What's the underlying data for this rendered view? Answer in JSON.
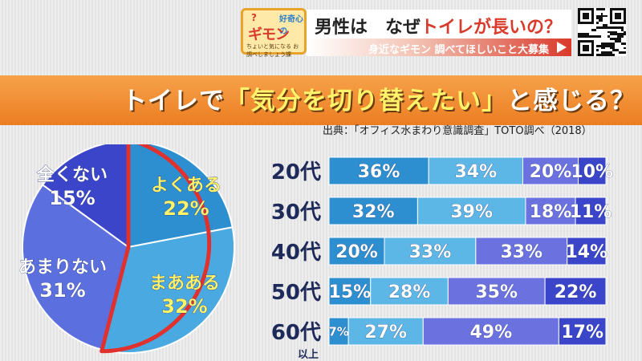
{
  "header": {
    "logo_top": "?",
    "logo_top2": "好奇心の",
    "logo_title": "ギモン",
    "logo_sub": "ちょいと気になる お調べしましょう課",
    "headline_a": "男性は　なぜ",
    "headline_b": "トイレが長いの？",
    "subline": "身近なギモン 調べてほしいこと大募集"
  },
  "banner": {
    "title_a": "トイレで",
    "title_b": "「気分を切り替えたい」",
    "title_c": "と感じる？"
  },
  "source": "出典：「オフィス水まわり意識調査」TOTO調べ（2018）",
  "colors": {
    "pie_yoku": "#2d8fd0",
    "pie_maa": "#4aa9e0",
    "pie_amari": "#5b6fdf",
    "pie_zenku": "#3a45c9",
    "highlight": "#e1312f",
    "bar_c1": "#2d8fd0",
    "bar_c2": "#5cb6e6",
    "bar_c3": "#6b72e0",
    "bar_c4": "#3a45c9"
  },
  "chart_data": [
    {
      "type": "pie",
      "categories": [
        "よくある",
        "まあある",
        "あまりない",
        "全くない"
      ],
      "values": [
        22,
        32,
        31,
        15
      ],
      "labels": [
        "22%",
        "32%",
        "31%",
        "15%"
      ],
      "highlighted": [
        "よくある",
        "まあある"
      ]
    },
    {
      "type": "bar",
      "stacked": true,
      "orientation": "horizontal",
      "categories": [
        "20代",
        "30代",
        "40代",
        "50代",
        "60代"
      ],
      "category_notes": [
        "",
        "",
        "",
        "",
        "以上"
      ],
      "series": [
        {
          "values": [
            36,
            32,
            20,
            15,
            7
          ]
        },
        {
          "values": [
            34,
            39,
            33,
            28,
            27
          ]
        },
        {
          "values": [
            20,
            18,
            33,
            35,
            49
          ]
        },
        {
          "values": [
            10,
            11,
            14,
            22,
            17
          ]
        }
      ]
    }
  ]
}
